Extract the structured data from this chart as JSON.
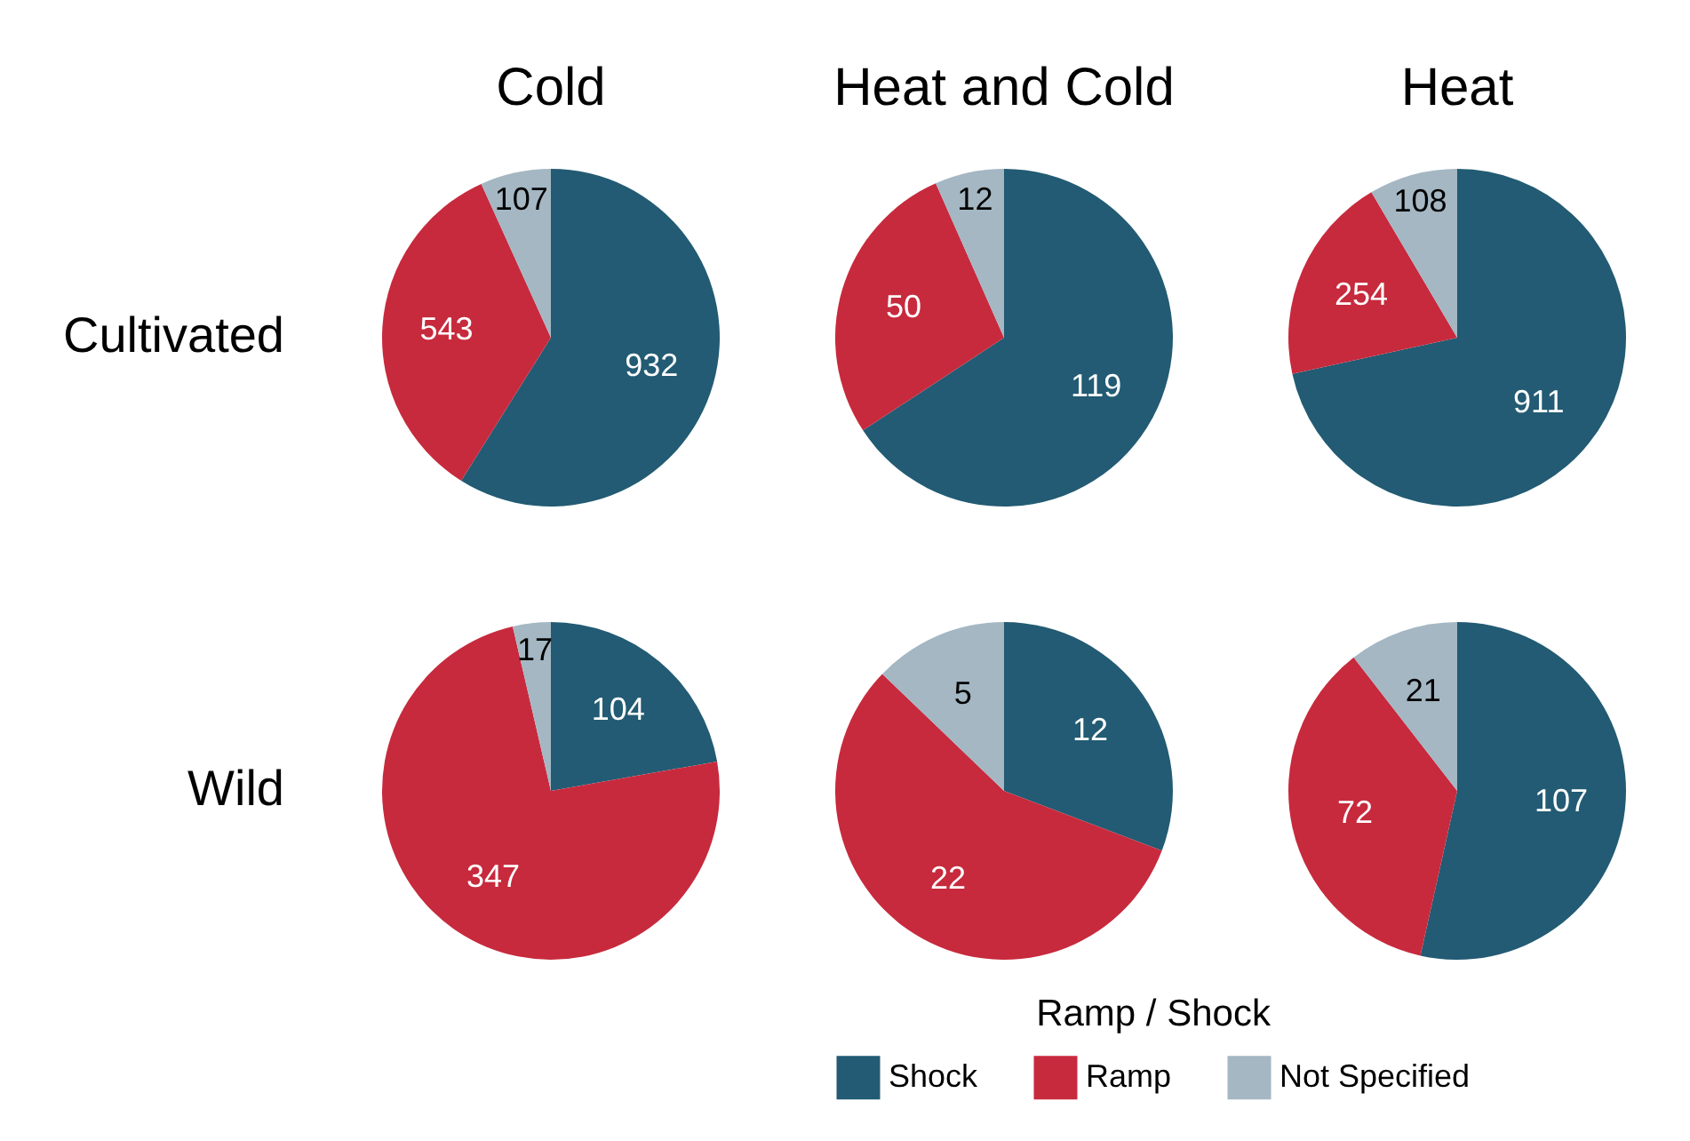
{
  "chart_data": [
    {
      "type": "pie",
      "title": "Cold",
      "ylabel": "Cultivated",
      "categories": [
        null,
        null,
        null
      ],
      "values": [
        932,
        543,
        107
      ],
      "colors": [
        "#225b73",
        "#c72a3d",
        "#a4b7c3"
      ],
      "data_labels": true
    },
    {
      "type": "pie",
      "title": "Heat and Cold",
      "categories": [
        null,
        null,
        null
      ],
      "values": [
        119,
        50,
        12
      ],
      "colors": [
        "#225b73",
        "#c72a3d",
        "#a4b7c3"
      ],
      "data_labels": true
    },
    {
      "type": "pie",
      "title": "Heat",
      "categories": [
        null,
        null,
        null
      ],
      "values": [
        911,
        254,
        108
      ],
      "colors": [
        "#225b73",
        "#c72a3d",
        "#a4b7c3"
      ],
      "data_labels": true
    },
    {
      "type": "pie",
      "ylabel": "Wild",
      "categories": [
        null,
        null,
        null
      ],
      "values": [
        104,
        347,
        17
      ],
      "colors": [
        "#225b73",
        "#c72a3d",
        "#a4b7c3"
      ],
      "data_labels": true
    },
    {
      "type": "pie",
      "categories": [
        "Shock",
        "Ramp",
        "Not Specified"
      ],
      "values": [
        12,
        22,
        5
      ],
      "colors": [
        "#225b73",
        "#c72a3d",
        "#a4b7c3"
      ],
      "data_labels": true,
      "legend": "bottom",
      "legend_title": "Ramp / Shock"
    },
    {
      "type": "pie",
      "categories": [
        null,
        null,
        null
      ],
      "values": [
        107,
        72,
        21
      ],
      "colors": [
        "#225b73",
        "#c72a3d",
        "#a4b7c3"
      ],
      "data_labels": true
    }
  ]
}
